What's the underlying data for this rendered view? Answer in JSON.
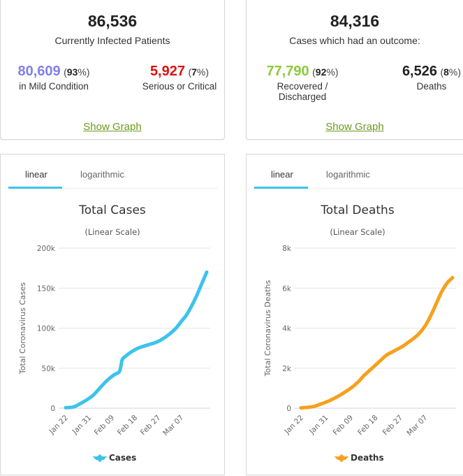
{
  "infected": {
    "total": "86,536",
    "label": "Currently Infected Patients",
    "mild": {
      "value": "80,609",
      "pct": "93",
      "label": "in Mild Condition",
      "color": "#8080e8"
    },
    "serious": {
      "value": "5,927",
      "pct": "7",
      "label": "Serious or Critical",
      "color": "#e01010"
    },
    "show_graph": "Show Graph"
  },
  "outcome": {
    "total": "84,316",
    "label": "Cases which had an outcome:",
    "recovered": {
      "value": "77,790",
      "pct": "92",
      "label": "Recovered / Discharged",
      "color": "#8acb38"
    },
    "deaths": {
      "value": "6,526",
      "pct": "8",
      "label": "Deaths",
      "color": "#222222"
    },
    "show_graph": "Show Graph"
  },
  "tabs": {
    "linear": "linear",
    "logarithmic": "logarithmic"
  },
  "chart_data": [
    {
      "type": "line",
      "title": "Total Cases",
      "subtitle": "(Linear Scale)",
      "ylabel": "Total Coronavirus Cases",
      "xlabel": "",
      "x_tick_labels": [
        "Jan 22",
        "Jan 31",
        "Feb 09",
        "Feb 18",
        "Feb 27",
        "Mar 07"
      ],
      "y_tick_labels": [
        "0",
        "50k",
        "100k",
        "150k",
        "200k"
      ],
      "y_ticks": [
        0,
        50000,
        100000,
        150000,
        200000
      ],
      "ylim": [
        0,
        200000
      ],
      "x_day_range": [
        0,
        55
      ],
      "grid": true,
      "legend": "bottom",
      "color": "#3cc3ec",
      "series": [
        {
          "name": "Cases",
          "x_days": [
            0,
            3,
            5,
            7,
            9,
            11,
            13,
            15,
            17,
            19,
            21,
            22,
            23,
            25,
            27,
            29,
            31,
            33,
            35,
            37,
            39,
            41,
            43,
            45,
            47,
            49,
            51,
            53,
            55
          ],
          "values": [
            600,
            1500,
            4500,
            8000,
            12000,
            17000,
            24000,
            31000,
            37000,
            42000,
            46000,
            60000,
            64000,
            69000,
            73000,
            76000,
            78000,
            80000,
            82000,
            85000,
            89000,
            94000,
            100000,
            108000,
            116000,
            127000,
            140000,
            155000,
            170000
          ]
        }
      ]
    },
    {
      "type": "line",
      "title": "Total Deaths",
      "subtitle": "(Linear Scale)",
      "ylabel": "Total Coronavirus Deaths",
      "xlabel": "",
      "x_tick_labels": [
        "Jan 22",
        "Jan 31",
        "Feb 09",
        "Feb 18",
        "Feb 27",
        "Mar 07"
      ],
      "y_tick_labels": [
        "0",
        "2k",
        "4k",
        "6k",
        "8k"
      ],
      "y_ticks": [
        0,
        2000,
        4000,
        6000,
        8000
      ],
      "ylim": [
        0,
        8000
      ],
      "x_day_range": [
        0,
        55
      ],
      "grid": true,
      "legend": "bottom",
      "color": "#f7a01d",
      "series": [
        {
          "name": "Deaths",
          "x_days": [
            0,
            3,
            5,
            7,
            9,
            11,
            13,
            15,
            17,
            19,
            21,
            23,
            25,
            27,
            29,
            31,
            33,
            35,
            37,
            39,
            41,
            43,
            45,
            47,
            49,
            51,
            53,
            55
          ],
          "values": [
            17,
            50,
            100,
            200,
            300,
            420,
            560,
            720,
            900,
            1100,
            1350,
            1650,
            1900,
            2150,
            2400,
            2650,
            2800,
            2950,
            3100,
            3300,
            3500,
            3750,
            4100,
            4600,
            5200,
            5800,
            6250,
            6526
          ]
        }
      ]
    }
  ]
}
